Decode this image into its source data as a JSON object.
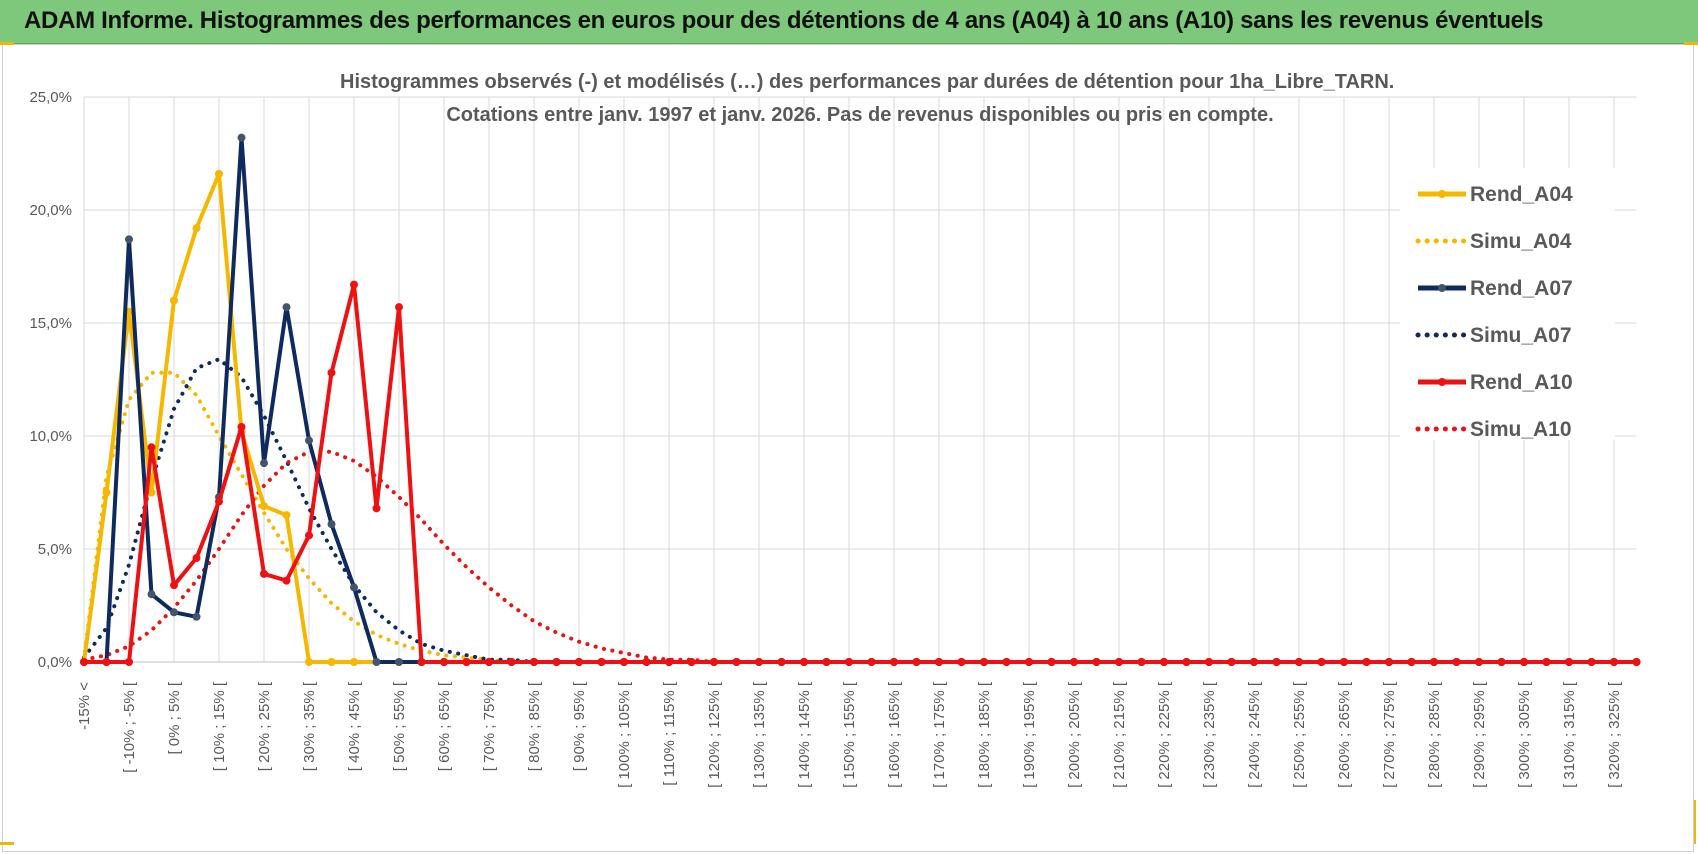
{
  "banner": {
    "title": "ADAM Informe. Histogrammes des performances en euros pour des détentions de 4 ans (A04) à 10 ans (A10) sans les revenus éventuels"
  },
  "colors": {
    "banner_bg": "#7dc87a",
    "A04": "#f5b700",
    "A07": "#0f2a5f",
    "A07_marker": "#44546a",
    "A10": "#ee1111",
    "grid": "#d9d9d9",
    "axis_text": "#595959"
  },
  "chart_data": {
    "type": "line",
    "title_line1": "Histogrammes observés (-) et modélisés (…) des performances par durées de détention pour 1ha_Libre_TARN.",
    "title_line2": "Cotations entre janv. 1997 et janv. 2026. Pas de revenus disponibles ou pris en compte.",
    "xlabel": "",
    "ylabel": "",
    "ylim": [
      0,
      25
    ],
    "yticks": [
      "0,0%",
      "5,0%",
      "10,0%",
      "15,0%",
      "20,0%",
      "25,0%"
    ],
    "grid": true,
    "legend_position": "right",
    "x_labels": [
      "-15% <",
      "[ -10% ; -5% [",
      "[ 0% ; 5% [",
      "[ 10% ; 15% [",
      "[ 20% ; 25% [",
      "[ 30% ; 35% [",
      "[ 40% ; 45% [",
      "[ 50% ; 55% [",
      "[ 60% ; 65% [",
      "[ 70% ; 75% [",
      "[ 80% ; 85% [",
      "[ 90% ; 95% [",
      "[ 100% ; 105% [",
      "[ 110% ; 115% [",
      "[ 120% ; 125% [",
      "[ 130% ; 135% [",
      "[ 140% ; 145% [",
      "[ 150% ; 155% [",
      "[ 160% ; 165% [",
      "[ 170% ; 175% [",
      "[ 180% ; 185% [",
      "[ 190% ; 195% [",
      "[ 200% ; 205% [",
      "[ 210% ; 215% [",
      "[ 220% ; 225% [",
      "[ 230% ; 235% [",
      "[ 240% ; 245% [",
      "[ 250% ; 255% [",
      "[ 260% ; 265% [",
      "[ 270% ; 275% [",
      "[ 280% ; 285% [",
      "[ 290% ; 295% [",
      "[ 300% ; 305% [",
      "[ 310% ; 315% [",
      "[ 320% ; 325% ["
    ],
    "bins_count": 70,
    "series": [
      {
        "name": "Rend_A04",
        "style": "solid",
        "color": "#f5b700",
        "marker": true,
        "values": [
          0,
          7.5,
          15.5,
          7.5,
          16.0,
          19.2,
          21.6,
          10.2,
          6.9,
          6.5,
          0,
          0,
          0,
          0,
          0,
          0
        ]
      },
      {
        "name": "Simu_A04",
        "style": "dotted",
        "color": "#f5b700",
        "marker": false,
        "values": [
          0.1,
          8.2,
          11.6,
          12.8,
          12.8,
          11.8,
          10.0,
          8.3,
          6.6,
          5.0,
          3.7,
          2.6,
          1.8,
          1.2,
          0.8,
          0.5,
          0.3,
          0.2,
          0.1,
          0
        ]
      },
      {
        "name": "Rend_A07",
        "style": "solid",
        "color": "#0f2a5f",
        "marker": true,
        "values": [
          0,
          0,
          18.7,
          3.0,
          2.2,
          2.0,
          7.3,
          23.2,
          8.8,
          15.7,
          9.8,
          6.1,
          3.3,
          0,
          0
        ]
      },
      {
        "name": "Simu_A07",
        "style": "dotted",
        "color": "#0f2a5f",
        "marker": false,
        "values": [
          0.2,
          1.5,
          4.3,
          8.0,
          11.2,
          13.0,
          13.4,
          12.6,
          10.9,
          8.9,
          6.8,
          5.0,
          3.4,
          2.2,
          1.4,
          0.8,
          0.5,
          0.3,
          0.1,
          0.1,
          0
        ]
      },
      {
        "name": "Rend_A10",
        "style": "solid",
        "color": "#ee1111",
        "marker": true,
        "values": [
          0,
          0,
          0,
          9.5,
          3.4,
          4.6,
          7.1,
          10.4,
          3.9,
          3.6,
          5.6,
          12.8,
          16.7,
          6.8,
          15.7,
          0,
          0
        ]
      },
      {
        "name": "Simu_A10",
        "style": "dotted",
        "color": "#ee1111",
        "marker": false,
        "values": [
          0.1,
          0.3,
          0.7,
          1.4,
          2.4,
          3.6,
          5.0,
          6.5,
          7.8,
          8.8,
          9.3,
          9.3,
          8.9,
          8.2,
          7.3,
          6.3,
          5.2,
          4.2,
          3.3,
          2.5,
          1.8,
          1.3,
          0.9,
          0.6,
          0.4,
          0.2,
          0.1,
          0.1,
          0
        ]
      }
    ]
  }
}
